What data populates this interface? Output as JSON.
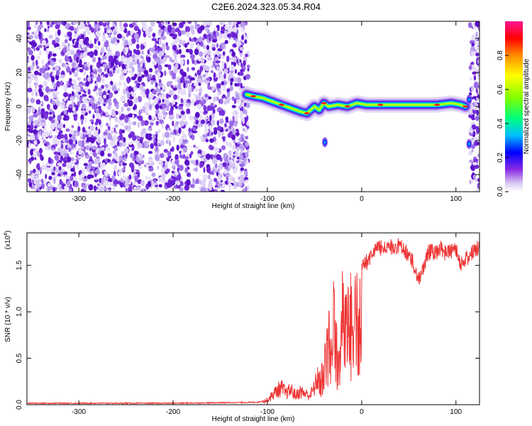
{
  "figure": {
    "title": "C2E6.2024.323.05.34.R04"
  },
  "chart_data": [
    {
      "type": "heatmap",
      "xlabel": "Height of straight line (km)",
      "ylabel": "Frequency (Hz)",
      "xlim": [
        -355,
        125
      ],
      "ylim": [
        -50,
        50
      ],
      "x_ticks": [
        -300,
        -200,
        -100,
        0,
        100
      ],
      "y_ticks": [
        -40,
        -20,
        0,
        20,
        40
      ],
      "colorbar": {
        "label": "Normalized spectral amplitude",
        "range": [
          0,
          1
        ],
        "ticks": [
          "0.0",
          "0.2",
          "0.4",
          "0.6",
          "0.8"
        ],
        "colors": [
          "#ffffff",
          "#8a2be2",
          "#0000ff",
          "#00bfff",
          "#00ff7f",
          "#7fff00",
          "#ffff00",
          "#ff8c00",
          "#ff0000",
          "#ff1493"
        ]
      },
      "noise_region_x": [
        -355,
        -120
      ],
      "noise_region_x_right": [
        115,
        125
      ],
      "signal_trace": {
        "x": [
          -122,
          -115,
          -105,
          -95,
          -85,
          -75,
          -65,
          -58,
          -50,
          -45,
          -40,
          -35,
          -25,
          -15,
          -5,
          5,
          20,
          40,
          60,
          80,
          95,
          105,
          110
        ],
        "y": [
          7,
          6,
          5,
          3,
          1,
          -1,
          -3,
          -4,
          0,
          -2,
          2,
          0,
          1,
          0,
          2,
          1,
          1,
          1,
          1,
          1,
          2,
          1,
          0
        ]
      },
      "spots": [
        {
          "x": -39,
          "y": -21
        },
        {
          "x": 114,
          "y": -22
        },
        {
          "x": 114,
          "y": 4
        }
      ]
    },
    {
      "type": "line",
      "xlabel": "Height of straight line (km)",
      "ylabel": "SNR (10 * v/v)",
      "scale_label": "(x10",
      "scale_exponent": "4",
      "scale_close": ")",
      "xlim": [
        -355,
        125
      ],
      "ylim": [
        0,
        1.85
      ],
      "x_ticks": [
        -300,
        -200,
        -100,
        0,
        100
      ],
      "y_ticks": [
        "0.0",
        "0.5",
        "1.0",
        "1.5"
      ],
      "color": "#ee3333",
      "x": [
        -355,
        -200,
        -110,
        -100,
        -95,
        -90,
        -85,
        -80,
        -75,
        -70,
        -65,
        -60,
        -55,
        -50,
        -45,
        -40,
        -37,
        -35,
        -32,
        -30,
        -27,
        -25,
        -22,
        -20,
        -18,
        -16,
        -14,
        -12,
        -10,
        -8,
        -5,
        -2,
        0,
        5,
        10,
        15,
        20,
        25,
        30,
        35,
        40,
        45,
        50,
        55,
        60,
        65,
        70,
        75,
        80,
        85,
        90,
        95,
        100,
        105,
        110,
        115,
        120,
        125
      ],
      "y": [
        0.01,
        0.01,
        0.02,
        0.05,
        0.1,
        0.15,
        0.18,
        0.12,
        0.16,
        0.1,
        0.14,
        0.12,
        0.1,
        0.18,
        0.35,
        0.6,
        0.9,
        1.35,
        0.8,
        1.4,
        1.2,
        0.5,
        1.2,
        1.75,
        1.3,
        1.45,
        1.3,
        1.5,
        1.35,
        1.45,
        1.55,
        1.5,
        1.6,
        1.62,
        1.7,
        1.75,
        1.78,
        1.76,
        1.78,
        1.8,
        1.8,
        1.75,
        1.7,
        1.6,
        1.45,
        1.55,
        1.72,
        1.75,
        1.72,
        1.78,
        1.7,
        1.75,
        1.78,
        1.6,
        1.65,
        1.72,
        1.75,
        1.8
      ]
    }
  ]
}
